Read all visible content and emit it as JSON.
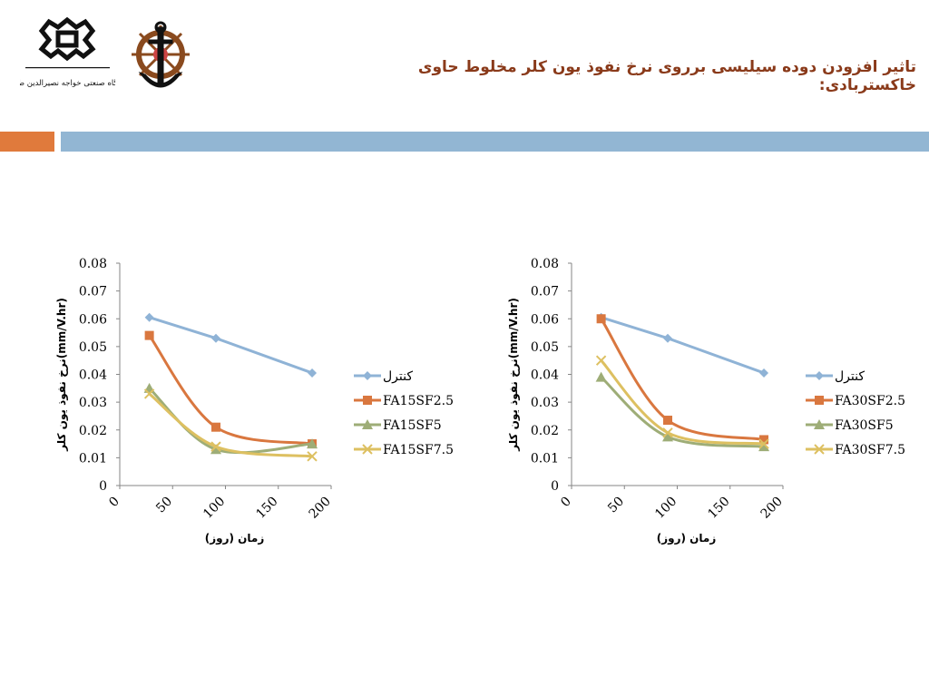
{
  "header": {
    "title": "تاثیر افزودن دوده سیلیسی برروی نرخ نفوذ یون کلر مخلوط حاوی خاکستربادی:",
    "logo_university_text": "دانشگاه صنعتی خواجه نصیرالدین طوسی"
  },
  "colors": {
    "title": "#8a3a1a",
    "accent_orange": "#e07a3c",
    "accent_blue": "#92b6d3",
    "series": [
      "#8fb3d6",
      "#d9773f",
      "#9ead77",
      "#ddc061"
    ]
  },
  "chart_data": [
    {
      "type": "line",
      "xlabel": "زمان (روز)",
      "ylabel": "نرخ نفوذ یون کلر(mm/V.hr)",
      "xlim": [
        0,
        200
      ],
      "ylim": [
        0,
        0.08
      ],
      "xticks": [
        "0",
        "50",
        "100",
        "150",
        "200"
      ],
      "yticks": [
        "0",
        "0.01",
        "0.02",
        "0.03",
        "0.04",
        "0.05",
        "0.06",
        "0.07",
        "0.08"
      ],
      "legend_position": "right",
      "grid": false,
      "x": [
        28,
        91,
        182
      ],
      "series": [
        {
          "name": "کنترل",
          "values": [
            0.0605,
            0.053,
            0.0405
          ],
          "marker": "diamond"
        },
        {
          "name": "FA15SF2.5",
          "values": [
            0.054,
            0.021,
            0.015
          ],
          "marker": "square"
        },
        {
          "name": "FA15SF5",
          "values": [
            0.035,
            0.013,
            0.015
          ],
          "marker": "triangle"
        },
        {
          "name": "FA15SF7.5",
          "values": [
            0.033,
            0.014,
            0.0105
          ],
          "marker": "x"
        }
      ]
    },
    {
      "type": "line",
      "xlabel": "زمان (روز)",
      "ylabel": "نرخ نفوذ یون کلر(mm/V.hr)",
      "xlim": [
        0,
        200
      ],
      "ylim": [
        0,
        0.08
      ],
      "xticks": [
        "0",
        "50",
        "100",
        "150",
        "200"
      ],
      "yticks": [
        "0",
        "0.01",
        "0.02",
        "0.03",
        "0.04",
        "0.05",
        "0.06",
        "0.07",
        "0.08"
      ],
      "legend_position": "right",
      "grid": false,
      "x": [
        28,
        91,
        182
      ],
      "series": [
        {
          "name": "کنترل",
          "values": [
            0.0605,
            0.053,
            0.0405
          ],
          "marker": "diamond"
        },
        {
          "name": "FA30SF2.5",
          "values": [
            0.06,
            0.0235,
            0.0165
          ],
          "marker": "square"
        },
        {
          "name": "FA30SF5",
          "values": [
            0.039,
            0.0175,
            0.014
          ],
          "marker": "triangle"
        },
        {
          "name": "FA30SF7.5",
          "values": [
            0.045,
            0.019,
            0.015
          ],
          "marker": "x"
        }
      ]
    }
  ]
}
